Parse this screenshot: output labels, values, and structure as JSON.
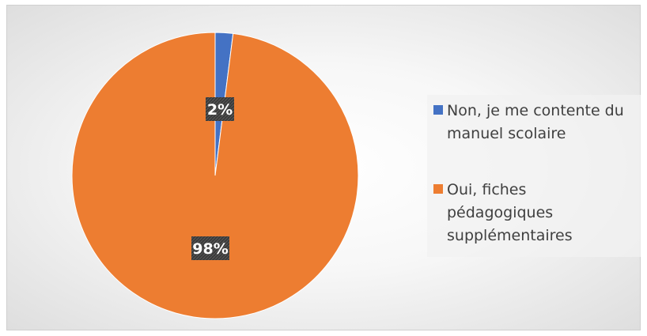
{
  "chart_data": {
    "type": "pie",
    "categories": [
      "Non, je me contente du manuel scolaire",
      "Oui, fiches pédagogiques supplémentaires"
    ],
    "values": [
      2,
      98
    ],
    "data_labels": [
      "2%",
      "98%"
    ],
    "colors": [
      "#4472C4",
      "#ED7D31"
    ],
    "legend_position": "right",
    "start_angle_deg": 0
  },
  "legend": {
    "items": [
      {
        "label": "Non, je me contente du manuel scolaire",
        "color": "#4472C4"
      },
      {
        "label": "Oui, fiches pédagogiques supplémentaires",
        "color": "#ED7D31"
      }
    ]
  }
}
